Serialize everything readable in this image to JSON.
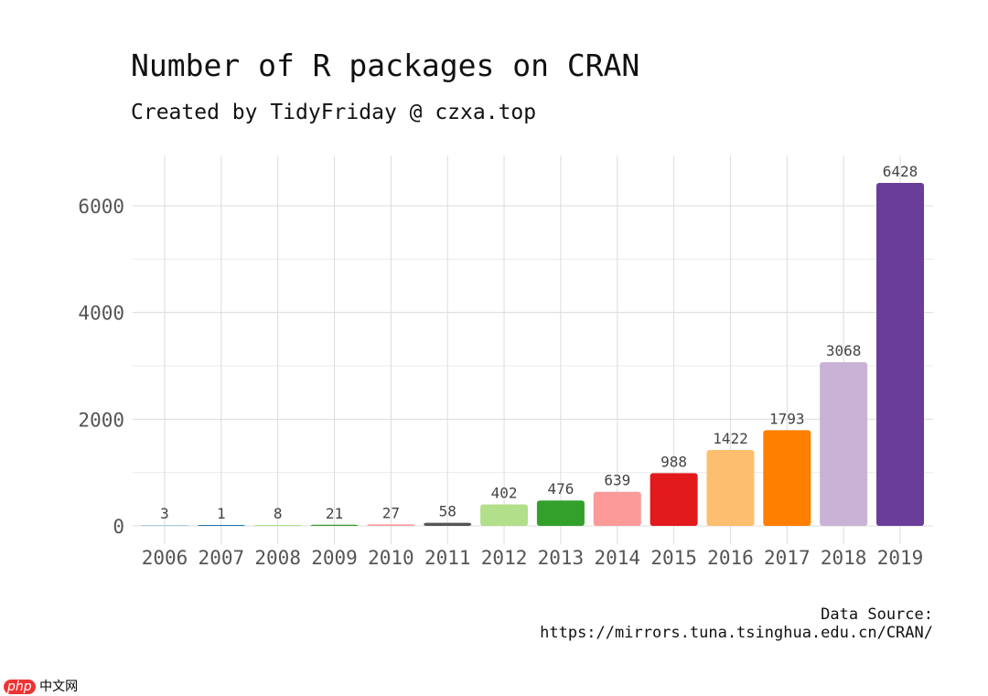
{
  "chart_data": {
    "type": "bar",
    "title": "Number of R packages on CRAN",
    "subtitle": "Created by TidyFriday @ czxa.top",
    "categories": [
      "2006",
      "2007",
      "2008",
      "2009",
      "2010",
      "2011",
      "2012",
      "2013",
      "2014",
      "2015",
      "2016",
      "2017",
      "2018",
      "2019"
    ],
    "values": [
      3,
      1,
      8,
      21,
      27,
      58,
      402,
      476,
      639,
      988,
      1422,
      1793,
      3068,
      6428
    ],
    "colors": [
      "#a6cee3",
      "#1f78b4",
      "#b2df8a",
      "#33a02c",
      "#fb9a99",
      "#555555",
      "#b2df8a",
      "#33a02c",
      "#fb9a99",
      "#e31a1c",
      "#fdbf6f",
      "#ff7f00",
      "#cab2d6",
      "#6a3d9a"
    ],
    "xlabel": "",
    "ylabel": "",
    "ylim": [
      0,
      6900
    ],
    "yticks": [
      "0",
      "2000",
      "4000",
      "6000"
    ],
    "grid": true,
    "legend": "none",
    "caption": [
      "Data Source:",
      "https://mirrors.tuna.tsinghua.edu.cn/CRAN/"
    ]
  },
  "watermark": {
    "logo": "php",
    "text": "中文网"
  }
}
